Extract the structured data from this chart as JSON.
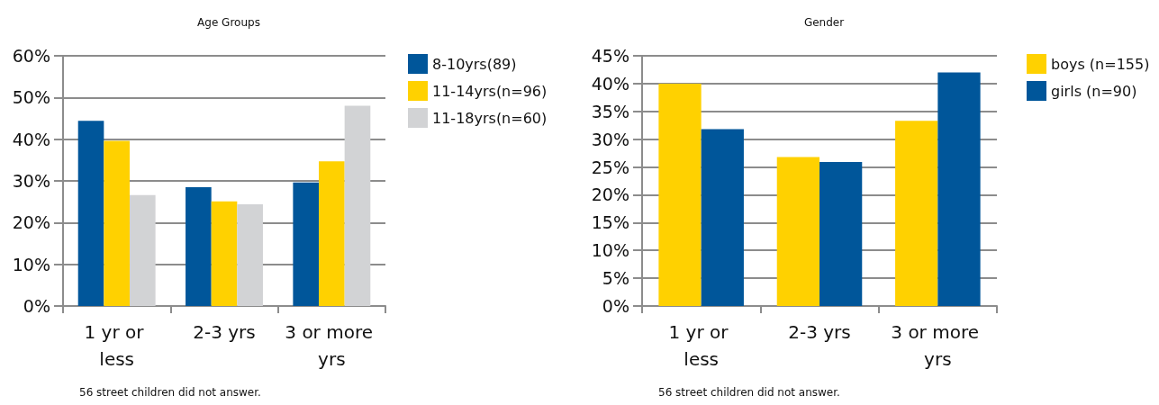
{
  "chart_data": [
    {
      "type": "bar",
      "title": "Age Groups",
      "categories": [
        "1 yr or less",
        "2-3 yrs",
        "3 or more yrs"
      ],
      "series": [
        {
          "name": "8-10yrs(89)",
          "color": "#00569a",
          "values": [
            44.4,
            28.5,
            29.6
          ]
        },
        {
          "name": "11-14yrs(n=96)",
          "color": "#ffd100",
          "values": [
            39.6,
            25.1,
            34.7
          ]
        },
        {
          "name": "11-18yrs(n=60)",
          "color": "#d2d3d5",
          "values": [
            26.6,
            24.4,
            48.0
          ]
        }
      ],
      "ylim": [
        0,
        60
      ],
      "yticks": [
        {
          "value": 0,
          "label": "0%"
        },
        {
          "value": 10,
          "label": "10%"
        },
        {
          "value": 20,
          "label": "20%"
        },
        {
          "value": 30,
          "label": "30%"
        },
        {
          "value": 40,
          "label": "40%"
        },
        {
          "value": 50,
          "label": "50%"
        },
        {
          "value": 60,
          "label": "60%"
        }
      ],
      "grid": "y",
      "legend": "top right",
      "annotations": [
        "56 street children did not answer."
      ]
    },
    {
      "type": "bar",
      "title": "Gender",
      "categories": [
        "1 yr or less",
        "2-3 yrs",
        "3 or more yrs"
      ],
      "series": [
        {
          "name": "boys (n=155)",
          "color": "#ffd100",
          "values": [
            40.0,
            26.8,
            33.3
          ]
        },
        {
          "name": "girls (n=90)",
          "color": "#00569a",
          "values": [
            31.8,
            25.9,
            42.0
          ]
        }
      ],
      "ylim": [
        0,
        45
      ],
      "yticks": [
        {
          "value": 0,
          "label": "0%"
        },
        {
          "value": 5,
          "label": "5%"
        },
        {
          "value": 10,
          "label": "10%"
        },
        {
          "value": 15,
          "label": "15%"
        },
        {
          "value": 20,
          "label": "20%"
        },
        {
          "value": 25,
          "label": "25%"
        },
        {
          "value": 30,
          "label": "30%"
        },
        {
          "value": 35,
          "label": "35%"
        },
        {
          "value": 40,
          "label": "40%"
        },
        {
          "value": 45,
          "label": "45%"
        }
      ],
      "grid": "y",
      "legend": "top right",
      "annotations": [
        "56 street children did not answer."
      ]
    }
  ]
}
